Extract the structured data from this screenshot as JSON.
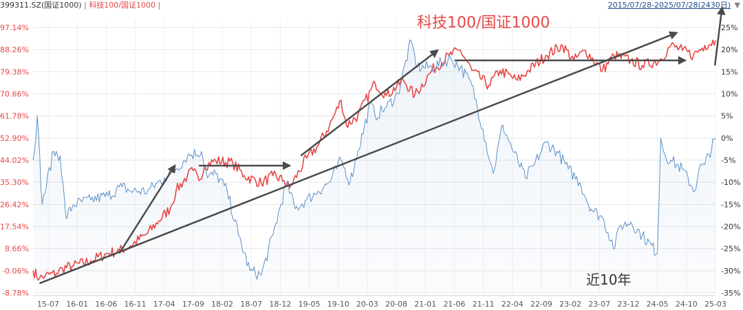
{
  "header": {
    "series_blue_code": "399311.SZ(国证1000)",
    "separator": "|",
    "series_red_code": "科技100/国证1000",
    "date_range": "2015/07/28-2025/07/28(2430日)",
    "dropdown_icon": "caret-down-icon"
  },
  "colors": {
    "red": "#e84646",
    "blue": "#5b8fc7",
    "arrow": "#4a4a4a",
    "left_axis_text": "#e84646",
    "right_axis_text": "#333333",
    "x_axis_text": "#555555"
  },
  "chart_data": {
    "type": "line",
    "annotations": [
      "科技100/国证1000",
      "近10年"
    ],
    "x_ticks": [
      "15-07",
      "16-01",
      "16-06",
      "16-11",
      "17-04",
      "17-09",
      "18-02",
      "18-07",
      "18-12",
      "19-05",
      "19-10",
      "20-03",
      "20-08",
      "21-01",
      "21-06",
      "21-11",
      "22-04",
      "22-09",
      "23-02",
      "23-07",
      "23-12",
      "24-05",
      "24-10",
      "25-03"
    ],
    "x_range": [
      "2015-07-28",
      "2025-07-28"
    ],
    "left_axis": {
      "ticks": [
        "97.14%",
        "88.26%",
        "79.38%",
        "70.66%",
        "61.78%",
        "52.90%",
        "44.02%",
        "35.30%",
        "26.42%",
        "17.54%",
        "8.66%",
        "-0.06%",
        "-8.78%"
      ],
      "range": [
        -8.78,
        97.14
      ]
    },
    "right_axis": {
      "ticks": [
        "25%",
        "20%",
        "15%",
        "10%",
        "5%",
        "0%",
        "-5%",
        "-10%",
        "-15%",
        "-20%",
        "-25%",
        "-30%",
        "-35%"
      ],
      "range": [
        -35,
        25
      ]
    },
    "series": [
      {
        "name": "科技100/国证1000",
        "axis": "left",
        "color": "#e84646",
        "points": [
          [
            "2015-07-28",
            0
          ],
          [
            "2015-09-01",
            -3
          ],
          [
            "2015-10-01",
            -2
          ],
          [
            "2015-12-01",
            -1
          ],
          [
            "2016-01-01",
            1
          ],
          [
            "2016-03-01",
            2
          ],
          [
            "2016-06-01",
            4
          ],
          [
            "2016-09-01",
            7
          ],
          [
            "2016-11-01",
            8
          ],
          [
            "2017-01-01",
            10
          ],
          [
            "2017-04-01",
            15
          ],
          [
            "2017-06-01",
            20
          ],
          [
            "2017-08-01",
            25
          ],
          [
            "2017-09-01",
            32
          ],
          [
            "2017-11-01",
            38
          ],
          [
            "2017-12-01",
            40
          ],
          [
            "2018-01-01",
            36
          ],
          [
            "2018-02-01",
            42
          ],
          [
            "2018-04-01",
            44
          ],
          [
            "2018-07-01",
            43
          ],
          [
            "2018-09-01",
            38
          ],
          [
            "2018-12-01",
            35
          ],
          [
            "2019-02-01",
            38
          ],
          [
            "2019-04-01",
            36
          ],
          [
            "2019-05-01",
            33
          ],
          [
            "2019-08-01",
            45
          ],
          [
            "2019-10-01",
            50
          ],
          [
            "2019-12-01",
            58
          ],
          [
            "2020-02-01",
            68
          ],
          [
            "2020-03-01",
            58
          ],
          [
            "2020-05-01",
            62
          ],
          [
            "2020-08-01",
            75
          ],
          [
            "2020-10-01",
            70
          ],
          [
            "2021-01-01",
            76
          ],
          [
            "2021-03-01",
            70
          ],
          [
            "2021-06-01",
            80
          ],
          [
            "2021-09-01",
            86
          ],
          [
            "2021-11-01",
            88
          ],
          [
            "2022-01-01",
            80
          ],
          [
            "2022-04-01",
            74
          ],
          [
            "2022-06-01",
            80
          ],
          [
            "2022-09-01",
            76
          ],
          [
            "2022-11-01",
            80
          ],
          [
            "2023-02-01",
            86
          ],
          [
            "2023-05-01",
            90
          ],
          [
            "2023-07-01",
            84
          ],
          [
            "2023-09-01",
            88
          ],
          [
            "2023-12-01",
            80
          ],
          [
            "2024-02-01",
            86
          ],
          [
            "2024-05-01",
            84
          ],
          [
            "2024-07-01",
            82
          ],
          [
            "2024-10-01",
            84
          ],
          [
            "2024-12-01",
            90
          ],
          [
            "2025-02-01",
            88
          ],
          [
            "2025-04-01",
            86
          ],
          [
            "2025-06-01",
            90
          ],
          [
            "2025-07-28",
            92
          ]
        ]
      },
      {
        "name": "399311.SZ(国证1000)",
        "axis": "right",
        "color": "#5b8fc7",
        "points": [
          [
            "2015-07-28",
            -5
          ],
          [
            "2015-08-20",
            5
          ],
          [
            "2015-09-15",
            -15
          ],
          [
            "2015-11-15",
            -3
          ],
          [
            "2015-12-20",
            -4
          ],
          [
            "2016-01-20",
            -18
          ],
          [
            "2016-03-01",
            -15
          ],
          [
            "2016-06-01",
            -14
          ],
          [
            "2016-09-01",
            -13
          ],
          [
            "2016-11-15",
            -11
          ],
          [
            "2017-01-01",
            -12
          ],
          [
            "2017-04-01",
            -12
          ],
          [
            "2017-07-01",
            -9
          ],
          [
            "2017-09-01",
            -7
          ],
          [
            "2017-11-01",
            -4
          ],
          [
            "2018-01-15",
            -3
          ],
          [
            "2018-02-15",
            -9
          ],
          [
            "2018-04-01",
            -8
          ],
          [
            "2018-06-01",
            -12
          ],
          [
            "2018-08-01",
            -22
          ],
          [
            "2018-10-01",
            -30
          ],
          [
            "2018-12-01",
            -31
          ],
          [
            "2019-02-01",
            -22
          ],
          [
            "2019-04-15",
            -10
          ],
          [
            "2019-06-01",
            -16
          ],
          [
            "2019-08-01",
            -14
          ],
          [
            "2019-10-01",
            -12
          ],
          [
            "2019-12-01",
            -10
          ],
          [
            "2020-02-01",
            -5
          ],
          [
            "2020-03-20",
            -10
          ],
          [
            "2020-05-01",
            -3
          ],
          [
            "2020-07-10",
            8
          ],
          [
            "2020-08-01",
            5
          ],
          [
            "2020-10-01",
            7
          ],
          [
            "2020-12-01",
            10
          ],
          [
            "2021-02-10",
            22
          ],
          [
            "2021-03-15",
            16
          ],
          [
            "2021-06-01",
            16
          ],
          [
            "2021-09-10",
            18
          ],
          [
            "2021-11-01",
            16
          ],
          [
            "2022-01-01",
            12
          ],
          [
            "2022-03-01",
            2
          ],
          [
            "2022-04-25",
            -8
          ],
          [
            "2022-06-15",
            3
          ],
          [
            "2022-08-01",
            -2
          ],
          [
            "2022-10-15",
            -9
          ],
          [
            "2022-12-01",
            -6
          ],
          [
            "2023-02-01",
            -1
          ],
          [
            "2023-04-01",
            -3
          ],
          [
            "2023-06-01",
            -7
          ],
          [
            "2023-08-01",
            -10
          ],
          [
            "2023-10-01",
            -16
          ],
          [
            "2023-12-01",
            -18
          ],
          [
            "2024-02-05",
            -25
          ],
          [
            "2024-03-01",
            -20
          ],
          [
            "2024-05-01",
            -19
          ],
          [
            "2024-07-01",
            -22
          ],
          [
            "2024-09-20",
            -26
          ],
          [
            "2024-10-08",
            0
          ],
          [
            "2024-11-01",
            -4
          ],
          [
            "2024-12-01",
            -5
          ],
          [
            "2025-02-01",
            -7
          ],
          [
            "2025-04-08",
            -12
          ],
          [
            "2025-05-01",
            -7
          ],
          [
            "2025-06-01",
            -6
          ],
          [
            "2025-07-28",
            0
          ]
        ]
      }
    ],
    "arrows": [
      {
        "from": [
          "2016-11-01",
          7
        ],
        "to": [
          "2017-08-25",
          42
        ],
        "axis": "left"
      },
      {
        "from": [
          "2018-01-01",
          42
        ],
        "to": [
          "2019-05-01",
          42
        ],
        "axis": "left"
      },
      {
        "from": [
          "2019-07-01",
          46
        ],
        "to": [
          "2021-07-01",
          88
        ],
        "axis": "left"
      },
      {
        "from": [
          "2021-10-01",
          84
        ],
        "to": [
          "2025-02-15",
          84
        ],
        "axis": "left"
      },
      {
        "from": [
          "2015-09-01",
          -5
        ],
        "to": [
          "2025-01-01",
          95
        ],
        "axis": "left"
      },
      {
        "from": [
          "2025-07-25",
          82
        ],
        "to": [
          "2025-09-01",
          105
        ],
        "axis": "left"
      }
    ]
  }
}
